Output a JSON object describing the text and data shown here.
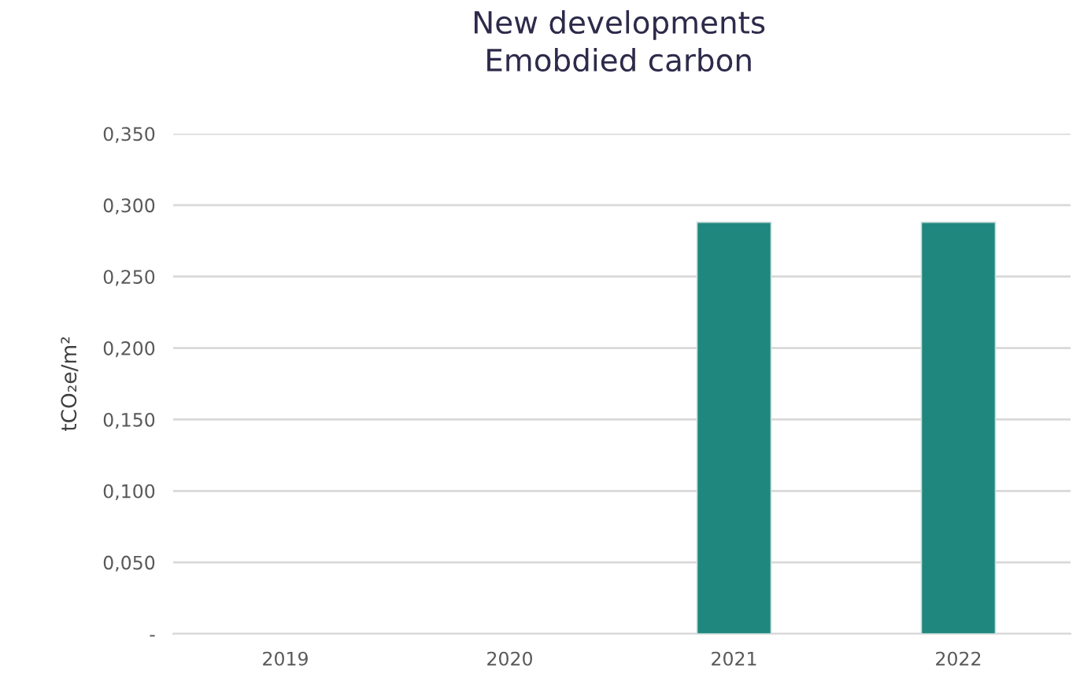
{
  "chart_data": {
    "type": "bar",
    "title": "New developments\nEmobdied carbon",
    "ylabel": "tCO₂e/m²",
    "categories": [
      "2019",
      "2020",
      "2021",
      "2022"
    ],
    "values": [
      null,
      null,
      0.288,
      0.288
    ],
    "color": "#20877f",
    "ylim": [
      0,
      0.35
    ],
    "yticks": [
      {
        "value": 0,
        "label": "-"
      },
      {
        "value": 0.05,
        "label": "0,050"
      },
      {
        "value": 0.1,
        "label": "0,100"
      },
      {
        "value": 0.15,
        "label": "0,150"
      },
      {
        "value": 0.2,
        "label": "0,200"
      },
      {
        "value": 0.25,
        "label": "0,250"
      },
      {
        "value": 0.3,
        "label": "0,300"
      },
      {
        "value": 0.35,
        "label": "0,350"
      }
    ],
    "grid": "y"
  }
}
